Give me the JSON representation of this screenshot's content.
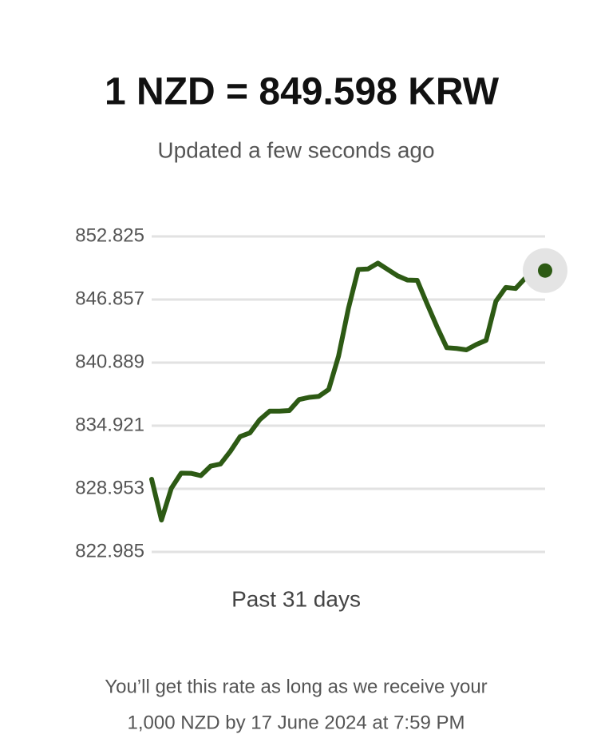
{
  "chart_data": {
    "type": "line",
    "title": "1 NZD = 849.598 KRW",
    "subtitle": "Updated a few seconds ago",
    "x_label": "Past 31 days",
    "color": "#2d5a14",
    "grid": true,
    "ylim": [
      822.985,
      852.825
    ],
    "yticks": [
      822.985,
      828.953,
      834.921,
      840.889,
      846.857,
      852.825
    ],
    "values": [
      829.86,
      826.0,
      829.0,
      830.44,
      830.42,
      830.2,
      831.1,
      831.3,
      832.5,
      833.9,
      834.25,
      835.5,
      836.3,
      836.3,
      836.36,
      837.4,
      837.6,
      837.7,
      838.35,
      841.5,
      846.0,
      849.7,
      849.75,
      850.3,
      849.7,
      849.1,
      848.7,
      848.67,
      846.45,
      844.3,
      842.3,
      842.23,
      842.1,
      842.6,
      843.0,
      846.7,
      848.0,
      847.9,
      848.9,
      849.5,
      849.598
    ]
  },
  "footer": {
    "lines": [
      "You’ll get this rate as long as we receive your",
      "1,000 NZD by 17 June 2024 at 7:59 PM"
    ]
  }
}
